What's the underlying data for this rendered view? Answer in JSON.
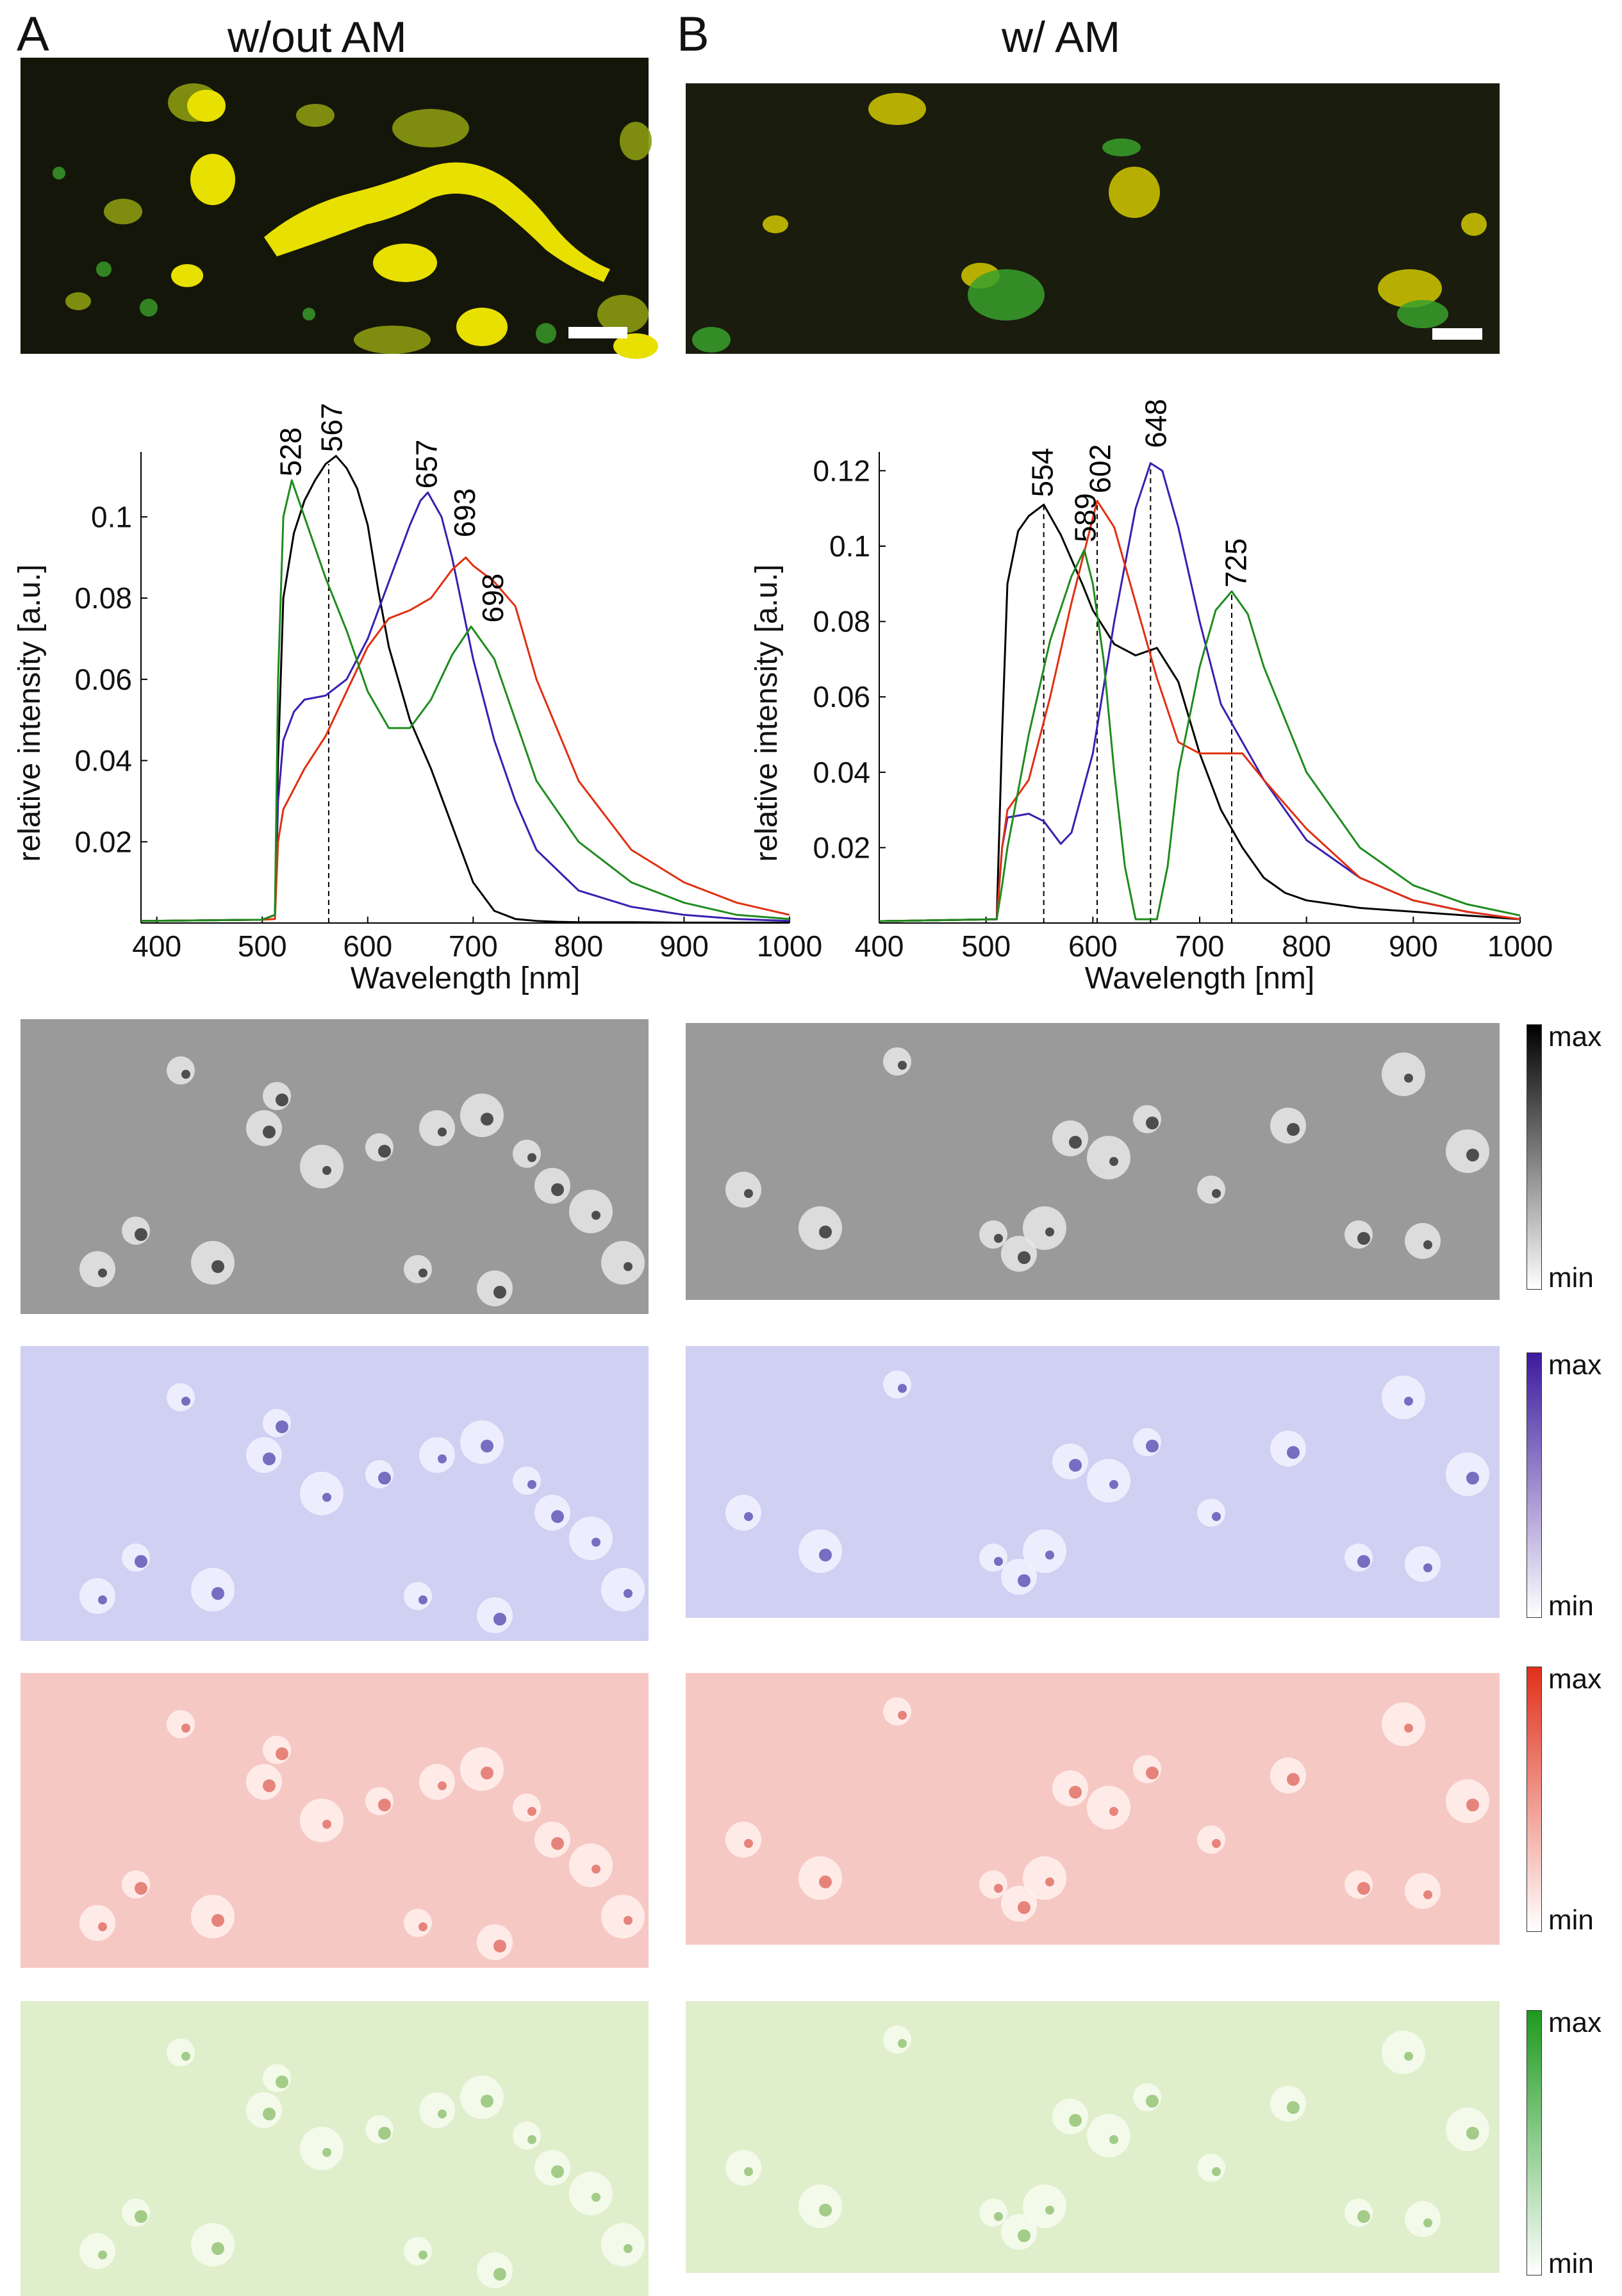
{
  "panels": {
    "A": {
      "letter": "A",
      "title": "w/out AM"
    },
    "B": {
      "letter": "B",
      "title": "w/ AM"
    }
  },
  "colors": {
    "black": "#000000",
    "blue": "#3a1fb0",
    "red": "#e03010",
    "green": "#1e8c1e",
    "dark_bg": "#1a1a08",
    "fluor_yellow": "#e8e000",
    "fluor_green": "#3aa02a"
  },
  "colorbars": [
    {
      "name": "gray",
      "max_label": "max",
      "min_label": "min",
      "top": "#000000",
      "bottom": "#ffffff"
    },
    {
      "name": "blue",
      "max_label": "max",
      "min_label": "min",
      "top": "#3d1a9e",
      "bottom": "#ffffff"
    },
    {
      "name": "red",
      "max_label": "max",
      "min_label": "min",
      "top": "#e0301a",
      "bottom": "#ffffff"
    },
    {
      "name": "green",
      "max_label": "max",
      "min_label": "min",
      "top": "#1e9a1e",
      "bottom": "#ffffff"
    }
  ],
  "image_rows": [
    {
      "name": "grayscale",
      "tint": "gray"
    },
    {
      "name": "blue-channel",
      "tint": "blue"
    },
    {
      "name": "red-channel",
      "tint": "red"
    },
    {
      "name": "green-channel",
      "tint": "green"
    }
  ],
  "chart_data": [
    {
      "type": "line",
      "panel": "A",
      "xlabel": "Wavelength [nm]",
      "ylabel": "relative intensity [a.u.]",
      "xlim": [
        385,
        1000
      ],
      "ylim": [
        0,
        0.116
      ],
      "xticks": [
        400,
        500,
        600,
        700,
        800,
        900,
        1000
      ],
      "yticks": [
        0.02,
        0.04,
        0.06,
        0.08,
        0.1
      ],
      "ytick_labels": [
        "0.02",
        "0.04",
        "0.06",
        "0.08",
        "0.1"
      ],
      "peak_labels": [
        {
          "text": "528",
          "x": 528,
          "y": 0.109,
          "color": "#000000"
        },
        {
          "text": "567",
          "x": 567,
          "y": 0.115,
          "color": "#000000"
        },
        {
          "text": "657",
          "x": 657,
          "y": 0.106,
          "color": "#000000"
        },
        {
          "text": "693",
          "x": 693,
          "y": 0.094,
          "color": "#000000"
        },
        {
          "text": "698",
          "x": 720,
          "y": 0.073,
          "color": "#000000"
        }
      ],
      "dashed_lines": [
        {
          "x": 563,
          "y": 0.113
        }
      ],
      "series": [
        {
          "name": "black",
          "color": "#000000",
          "x": [
            385,
            500,
            512,
            515,
            520,
            530,
            540,
            550,
            560,
            570,
            580,
            590,
            600,
            610,
            620,
            640,
            660,
            680,
            700,
            720,
            740,
            760,
            780,
            800,
            850,
            900,
            1000
          ],
          "y": [
            0.0005,
            0.0008,
            0.002,
            0.04,
            0.08,
            0.096,
            0.104,
            0.109,
            0.113,
            0.115,
            0.112,
            0.107,
            0.098,
            0.082,
            0.068,
            0.05,
            0.038,
            0.024,
            0.01,
            0.003,
            0.001,
            0.0005,
            0.0003,
            0.0002,
            0.0002,
            0.0001,
            0.0001
          ]
        },
        {
          "name": "blue",
          "color": "#3a1fb0",
          "x": [
            385,
            500,
            512,
            515,
            520,
            530,
            540,
            560,
            580,
            600,
            620,
            640,
            650,
            657,
            670,
            680,
            700,
            720,
            740,
            760,
            800,
            850,
            900,
            950,
            1000
          ],
          "y": [
            0.0005,
            0.0008,
            0.002,
            0.03,
            0.045,
            0.052,
            0.055,
            0.056,
            0.06,
            0.07,
            0.084,
            0.098,
            0.104,
            0.106,
            0.1,
            0.09,
            0.065,
            0.045,
            0.03,
            0.018,
            0.008,
            0.004,
            0.002,
            0.001,
            0.0005
          ]
        },
        {
          "name": "red",
          "color": "#e03010",
          "x": [
            385,
            500,
            512,
            515,
            520,
            530,
            540,
            560,
            580,
            600,
            620,
            640,
            660,
            680,
            693,
            700,
            720,
            740,
            760,
            800,
            850,
            900,
            950,
            1000
          ],
          "y": [
            0.0005,
            0.0008,
            0.001,
            0.02,
            0.028,
            0.033,
            0.038,
            0.046,
            0.057,
            0.068,
            0.075,
            0.077,
            0.08,
            0.087,
            0.09,
            0.088,
            0.084,
            0.078,
            0.06,
            0.035,
            0.018,
            0.01,
            0.005,
            0.002
          ]
        },
        {
          "name": "green",
          "color": "#1e8c1e",
          "x": [
            385,
            500,
            512,
            515,
            520,
            528,
            540,
            560,
            580,
            600,
            620,
            640,
            660,
            680,
            698,
            720,
            740,
            760,
            800,
            850,
            900,
            950,
            1000
          ],
          "y": [
            0.0005,
            0.0008,
            0.002,
            0.06,
            0.1,
            0.109,
            0.1,
            0.085,
            0.072,
            0.057,
            0.048,
            0.048,
            0.055,
            0.066,
            0.073,
            0.065,
            0.05,
            0.035,
            0.02,
            0.01,
            0.005,
            0.002,
            0.001
          ]
        }
      ]
    },
    {
      "type": "line",
      "panel": "B",
      "xlabel": "Wavelength [nm]",
      "ylabel": "relative intensity [a.u.]",
      "xlim": [
        400,
        1000
      ],
      "ylim": [
        0,
        0.125
      ],
      "xticks": [
        400,
        500,
        600,
        700,
        800,
        900,
        1000
      ],
      "yticks": [
        0.02,
        0.04,
        0.06,
        0.08,
        0.1,
        0.12
      ],
      "ytick_labels": [
        "0.02",
        "0.04",
        "0.06",
        "0.08",
        "0.1",
        "0.12"
      ],
      "peak_labels": [
        {
          "text": "554",
          "x": 554,
          "y": 0.112,
          "color": "#000000"
        },
        {
          "text": "589",
          "x": 594,
          "y": 0.1,
          "color": "#000000"
        },
        {
          "text": "602",
          "x": 608,
          "y": 0.113,
          "color": "#000000"
        },
        {
          "text": "648",
          "x": 660,
          "y": 0.125,
          "color": "#000000"
        },
        {
          "text": "725",
          "x": 735,
          "y": 0.088,
          "color": "#000000"
        }
      ],
      "dashed_lines": [
        {
          "x": 554,
          "y": 0.111
        },
        {
          "x": 604,
          "y": 0.112
        },
        {
          "x": 654,
          "y": 0.122
        },
        {
          "x": 730,
          "y": 0.088
        }
      ],
      "series": [
        {
          "name": "black",
          "color": "#000000",
          "x": [
            400,
            510,
            515,
            520,
            530,
            540,
            554,
            570,
            590,
            600,
            620,
            640,
            660,
            680,
            700,
            720,
            740,
            760,
            780,
            800,
            850,
            900,
            950,
            1000
          ],
          "y": [
            0.0005,
            0.001,
            0.05,
            0.09,
            0.104,
            0.108,
            0.111,
            0.103,
            0.09,
            0.083,
            0.074,
            0.071,
            0.073,
            0.064,
            0.045,
            0.03,
            0.02,
            0.012,
            0.008,
            0.006,
            0.004,
            0.003,
            0.002,
            0.001
          ]
        },
        {
          "name": "blue",
          "color": "#3a1fb0",
          "x": [
            400,
            510,
            515,
            520,
            540,
            554,
            570,
            580,
            600,
            620,
            640,
            654,
            665,
            680,
            700,
            720,
            740,
            760,
            800,
            850,
            900,
            950,
            1000
          ],
          "y": [
            0.0005,
            0.001,
            0.02,
            0.028,
            0.029,
            0.027,
            0.021,
            0.024,
            0.045,
            0.08,
            0.11,
            0.122,
            0.12,
            0.105,
            0.08,
            0.058,
            0.048,
            0.038,
            0.022,
            0.012,
            0.006,
            0.003,
            0.001
          ]
        },
        {
          "name": "red",
          "color": "#e03010",
          "x": [
            400,
            510,
            515,
            520,
            540,
            560,
            580,
            604,
            620,
            640,
            660,
            680,
            700,
            720,
            740,
            760,
            800,
            850,
            900,
            950,
            1000
          ],
          "y": [
            0.0005,
            0.001,
            0.02,
            0.03,
            0.038,
            0.06,
            0.085,
            0.112,
            0.105,
            0.085,
            0.065,
            0.048,
            0.045,
            0.045,
            0.045,
            0.038,
            0.025,
            0.012,
            0.006,
            0.003,
            0.001
          ]
        },
        {
          "name": "green",
          "color": "#1e8c1e",
          "x": [
            400,
            510,
            515,
            520,
            540,
            560,
            580,
            592,
            600,
            610,
            620,
            630,
            640,
            650,
            660,
            670,
            680,
            700,
            715,
            730,
            745,
            760,
            800,
            850,
            900,
            950,
            1000
          ],
          "y": [
            0.0005,
            0.001,
            0.01,
            0.02,
            0.05,
            0.075,
            0.092,
            0.099,
            0.09,
            0.07,
            0.04,
            0.015,
            0.001,
            0.001,
            0.001,
            0.015,
            0.04,
            0.068,
            0.083,
            0.088,
            0.082,
            0.068,
            0.04,
            0.02,
            0.01,
            0.005,
            0.002
          ]
        }
      ]
    }
  ]
}
